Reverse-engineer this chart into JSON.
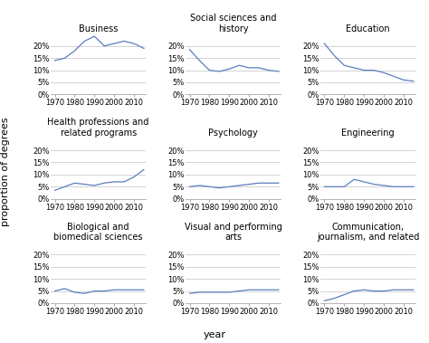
{
  "years": [
    1970,
    1975,
    1980,
    1985,
    1990,
    1995,
    2000,
    2005,
    2010,
    2015
  ],
  "subplots": [
    {
      "title": "Business",
      "values": [
        14,
        15,
        18,
        22,
        24,
        20,
        21,
        22,
        21,
        19
      ]
    },
    {
      "title": "Social sciences and\nhistory",
      "values": [
        18.5,
        14,
        10,
        9.5,
        10.5,
        12,
        11,
        11,
        10,
        9.5
      ]
    },
    {
      "title": "Education",
      "values": [
        21,
        16,
        12,
        11,
        10,
        10,
        9,
        7.5,
        6,
        5.5
      ]
    },
    {
      "title": "Health professions and\nrelated programs",
      "values": [
        3.5,
        5,
        6.5,
        6,
        5.5,
        6.5,
        7,
        7,
        9,
        12
      ]
    },
    {
      "title": "Psychology",
      "values": [
        5,
        5.5,
        5,
        4.5,
        5,
        5.5,
        6,
        6.5,
        6.5,
        6.5
      ]
    },
    {
      "title": "Engineering",
      "values": [
        5,
        5,
        5,
        8,
        7,
        6,
        5.5,
        5,
        5,
        5
      ]
    },
    {
      "title": "Biological and\nbiomedical sciences",
      "values": [
        5,
        6,
        4.5,
        4,
        5,
        5,
        5.5,
        5.5,
        5.5,
        5.5
      ]
    },
    {
      "title": "Visual and performing\narts",
      "values": [
        4,
        4.5,
        4.5,
        4.5,
        4.5,
        5,
        5.5,
        5.5,
        5.5,
        5.5
      ]
    },
    {
      "title": "Communication,\njournalism, and related",
      "values": [
        1,
        2,
        3.5,
        5,
        5.5,
        5,
        5,
        5.5,
        5.5,
        5.5
      ]
    }
  ],
  "line_color": "#5b7dbe",
  "ylim": [
    0,
    25
  ],
  "yticks": [
    0,
    5,
    10,
    15,
    20
  ],
  "ytick_labels": [
    "0%",
    "5%",
    "10%",
    "15%",
    "20%"
  ],
  "xticks": [
    1970,
    1980,
    1990,
    2000,
    2010
  ],
  "xtick_labels": [
    "1970",
    "1980",
    "1990",
    "2000",
    "2010"
  ],
  "ylabel": "proportion of degrees",
  "xlabel_center": "year",
  "grid_color": "#cccccc",
  "background_color": "#ffffff",
  "title_fontsize": 7,
  "tick_fontsize": 6,
  "label_fontsize": 7.5,
  "axis_label_fontsize": 8
}
